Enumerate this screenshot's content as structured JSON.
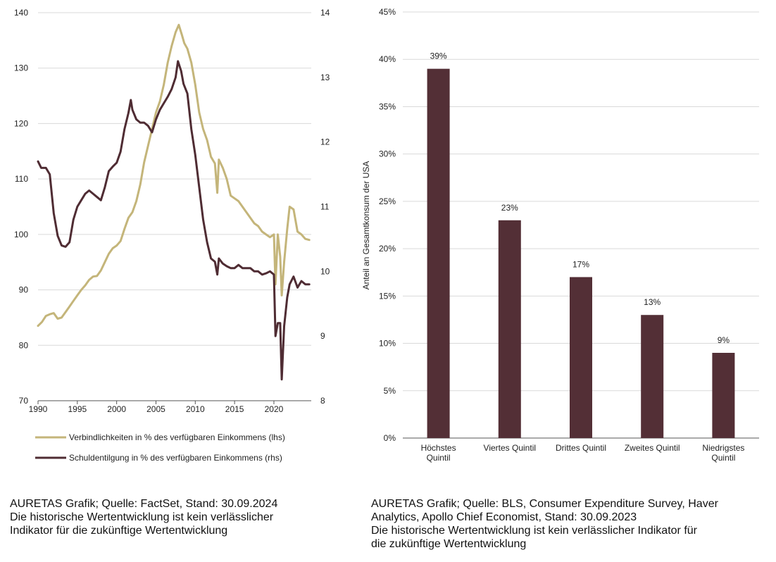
{
  "chart_data": [
    {
      "type": "line",
      "title": "",
      "x_ticks": [
        "1990",
        "1995",
        "2000",
        "2005",
        "2010",
        "2015",
        "2020"
      ],
      "xlim": [
        1990,
        2024.75
      ],
      "y_left": {
        "ticks": [
          "70",
          "80",
          "90",
          "100",
          "110",
          "120",
          "130",
          "140"
        ],
        "lim": [
          70,
          140
        ]
      },
      "y_right": {
        "ticks": [
          "8",
          "9",
          "10",
          "11",
          "12",
          "13",
          "14"
        ],
        "lim": [
          8,
          14
        ]
      },
      "grid": true,
      "legend_position": "bottom",
      "series": [
        {
          "name": "Verbindlichkeiten in % des verfügbaren Einkommens (lhs)",
          "axis": "left",
          "color": "#c4b57a",
          "points": [
            [
              1990.0,
              83.5
            ],
            [
              1990.5,
              84.2
            ],
            [
              1991.0,
              85.3
            ],
            [
              1991.5,
              85.6
            ],
            [
              1992.0,
              85.8
            ],
            [
              1992.5,
              84.8
            ],
            [
              1993.0,
              85.0
            ],
            [
              1993.5,
              86.0
            ],
            [
              1994.0,
              87.0
            ],
            [
              1994.5,
              88.0
            ],
            [
              1995.0,
              89.0
            ],
            [
              1995.5,
              90.0
            ],
            [
              1996.0,
              90.8
            ],
            [
              1996.5,
              91.8
            ],
            [
              1997.0,
              92.4
            ],
            [
              1997.5,
              92.5
            ],
            [
              1998.0,
              93.5
            ],
            [
              1998.5,
              95.0
            ],
            [
              1999.0,
              96.5
            ],
            [
              1999.5,
              97.5
            ],
            [
              2000.0,
              98.0
            ],
            [
              2000.5,
              98.8
            ],
            [
              2001.0,
              101.0
            ],
            [
              2001.5,
              103.0
            ],
            [
              2002.0,
              104.0
            ],
            [
              2002.5,
              106.0
            ],
            [
              2003.0,
              109.0
            ],
            [
              2003.5,
              113.0
            ],
            [
              2004.0,
              116.0
            ],
            [
              2004.5,
              119.0
            ],
            [
              2005.0,
              122.0
            ],
            [
              2005.5,
              124.0
            ],
            [
              2006.0,
              127.0
            ],
            [
              2006.5,
              131.0
            ],
            [
              2007.0,
              134.0
            ],
            [
              2007.5,
              136.5
            ],
            [
              2007.9,
              137.8
            ],
            [
              2008.3,
              136.0
            ],
            [
              2008.6,
              134.5
            ],
            [
              2009.0,
              133.5
            ],
            [
              2009.5,
              131.0
            ],
            [
              2010.0,
              127.0
            ],
            [
              2010.5,
              122.0
            ],
            [
              2011.0,
              119.0
            ],
            [
              2011.5,
              117.0
            ],
            [
              2012.0,
              114.0
            ],
            [
              2012.5,
              112.8
            ],
            [
              2012.8,
              107.5
            ],
            [
              2013.0,
              113.5
            ],
            [
              2013.5,
              112.0
            ],
            [
              2014.0,
              110.0
            ],
            [
              2014.5,
              107.0
            ],
            [
              2015.0,
              106.5
            ],
            [
              2015.5,
              106.0
            ],
            [
              2016.0,
              105.0
            ],
            [
              2016.5,
              104.0
            ],
            [
              2017.0,
              103.0
            ],
            [
              2017.5,
              102.0
            ],
            [
              2018.0,
              101.5
            ],
            [
              2018.5,
              100.5
            ],
            [
              2019.0,
              100.0
            ],
            [
              2019.5,
              99.5
            ],
            [
              2020.0,
              100.0
            ],
            [
              2020.2,
              91.0
            ],
            [
              2020.5,
              100.0
            ],
            [
              2020.8,
              96.0
            ],
            [
              2021.0,
              89.0
            ],
            [
              2021.3,
              95.0
            ],
            [
              2021.7,
              101.0
            ],
            [
              2022.0,
              105.0
            ],
            [
              2022.5,
              104.5
            ],
            [
              2023.0,
              100.5
            ],
            [
              2023.5,
              100.0
            ],
            [
              2024.0,
              99.2
            ],
            [
              2024.5,
              99.0
            ]
          ]
        },
        {
          "name": "Schuldentilgung in % des verfügbaren Einkommens (rhs)",
          "axis": "right",
          "color": "#4f2c33",
          "points": [
            [
              1990.0,
              11.7
            ],
            [
              1990.4,
              11.6
            ],
            [
              1991.0,
              11.6
            ],
            [
              1991.5,
              11.5
            ],
            [
              1992.0,
              10.9
            ],
            [
              1992.5,
              10.55
            ],
            [
              1993.0,
              10.4
            ],
            [
              1993.5,
              10.38
            ],
            [
              1994.0,
              10.45
            ],
            [
              1994.5,
              10.8
            ],
            [
              1995.0,
              11.0
            ],
            [
              1995.5,
              11.1
            ],
            [
              1996.0,
              11.2
            ],
            [
              1996.5,
              11.25
            ],
            [
              1997.0,
              11.2
            ],
            [
              1997.5,
              11.15
            ],
            [
              1998.0,
              11.1
            ],
            [
              1998.5,
              11.3
            ],
            [
              1999.0,
              11.55
            ],
            [
              1999.5,
              11.62
            ],
            [
              2000.0,
              11.68
            ],
            [
              2000.5,
              11.85
            ],
            [
              2001.0,
              12.2
            ],
            [
              2001.5,
              12.45
            ],
            [
              2001.8,
              12.65
            ],
            [
              2002.0,
              12.5
            ],
            [
              2002.5,
              12.35
            ],
            [
              2003.0,
              12.3
            ],
            [
              2003.5,
              12.3
            ],
            [
              2004.0,
              12.25
            ],
            [
              2004.5,
              12.15
            ],
            [
              2005.0,
              12.35
            ],
            [
              2005.5,
              12.5
            ],
            [
              2006.0,
              12.6
            ],
            [
              2006.5,
              12.7
            ],
            [
              2007.0,
              12.82
            ],
            [
              2007.5,
              13.0
            ],
            [
              2007.8,
              13.25
            ],
            [
              2008.2,
              13.1
            ],
            [
              2008.5,
              12.9
            ],
            [
              2009.0,
              12.75
            ],
            [
              2009.5,
              12.2
            ],
            [
              2010.0,
              11.8
            ],
            [
              2010.5,
              11.3
            ],
            [
              2011.0,
              10.8
            ],
            [
              2011.5,
              10.45
            ],
            [
              2012.0,
              10.2
            ],
            [
              2012.5,
              10.15
            ],
            [
              2012.8,
              9.95
            ],
            [
              2013.0,
              10.2
            ],
            [
              2013.5,
              10.12
            ],
            [
              2014.0,
              10.08
            ],
            [
              2014.5,
              10.05
            ],
            [
              2015.0,
              10.05
            ],
            [
              2015.5,
              10.1
            ],
            [
              2016.0,
              10.05
            ],
            [
              2016.5,
              10.05
            ],
            [
              2017.0,
              10.05
            ],
            [
              2017.5,
              10.0
            ],
            [
              2018.0,
              10.0
            ],
            [
              2018.5,
              9.95
            ],
            [
              2019.0,
              9.97
            ],
            [
              2019.5,
              10.0
            ],
            [
              2020.0,
              9.95
            ],
            [
              2020.2,
              9.0
            ],
            [
              2020.5,
              9.2
            ],
            [
              2020.8,
              9.2
            ],
            [
              2021.0,
              8.33
            ],
            [
              2021.3,
              9.15
            ],
            [
              2021.7,
              9.6
            ],
            [
              2022.0,
              9.8
            ],
            [
              2022.5,
              9.92
            ],
            [
              2023.0,
              9.75
            ],
            [
              2023.5,
              9.85
            ],
            [
              2024.0,
              9.8
            ],
            [
              2024.5,
              9.8
            ]
          ]
        }
      ]
    },
    {
      "type": "bar",
      "title": "",
      "ylabel": "Anteil an Gesamtkonsum der USA",
      "ylim": [
        0,
        45
      ],
      "y_ticks": [
        "0%",
        "5%",
        "10%",
        "15%",
        "20%",
        "25%",
        "30%",
        "35%",
        "40%",
        "45%"
      ],
      "grid": true,
      "color": "#532f36",
      "categories": [
        [
          "Höchstes",
          "Quintil"
        ],
        [
          "Viertes Quintil"
        ],
        [
          "Drittes Quintil"
        ],
        [
          "Zweites Quintil"
        ],
        [
          "Niedrigstes",
          "Quintil"
        ]
      ],
      "values": [
        39,
        23,
        17,
        13,
        9
      ],
      "value_labels": [
        "39%",
        "23%",
        "17%",
        "13%",
        "9%"
      ]
    }
  ],
  "captions": {
    "left": [
      "AURETAS Grafik; Quelle: FactSet, Stand: 30.09.2024",
      "Die historische Wertentwicklung ist kein verlässlicher",
      "Indikator für die zukünftige Wertentwicklung"
    ],
    "right": [
      "AURETAS Grafik; Quelle: BLS, Consumer Expenditure Survey, Haver",
      "Analytics, Apollo Chief Economist, Stand: 30.09.2023",
      "Die historische Wertentwicklung ist kein verlässlicher Indikator für",
      "die zukünftige Wertentwicklung"
    ]
  }
}
